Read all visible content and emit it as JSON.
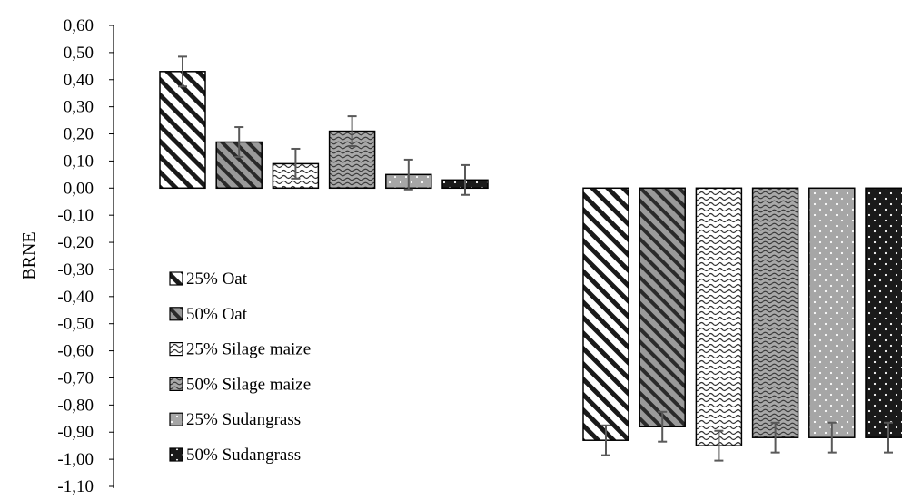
{
  "chart_data": {
    "type": "bar",
    "ylabel": "BRNE",
    "ylim": [
      -1.1,
      0.6
    ],
    "ytick_step": 0.1,
    "ytick_labels": [
      "0,60",
      "0,50",
      "0,40",
      "0,30",
      "0,20",
      "0,10",
      "0,00",
      "-0,10",
      "-0,20",
      "-0,30",
      "-0,40",
      "-0,50",
      "-0,60",
      "-0,70",
      "-0,80",
      "-0,90",
      "-1,00",
      "-1,10"
    ],
    "grid": false,
    "legend_position": "left-middle",
    "groups": [
      {
        "bars": [
          {
            "series": "25% Oat",
            "value": 0.43,
            "err": 0.055
          },
          {
            "series": "50% Oat",
            "value": 0.17,
            "err": 0.055
          },
          {
            "series": "25% Silage maize",
            "value": 0.09,
            "err": 0.055
          },
          {
            "series": "50% Silage maize",
            "value": 0.21,
            "err": 0.055
          },
          {
            "series": "25% Sudangrass",
            "value": 0.05,
            "err": 0.055
          },
          {
            "series": "50% Sudangrass",
            "value": 0.03,
            "err": 0.055
          }
        ]
      },
      {
        "bars": [
          {
            "series": "25% Oat",
            "value": -0.93,
            "err": 0.055
          },
          {
            "series": "50% Oat",
            "value": -0.88,
            "err": 0.055
          },
          {
            "series": "25% Silage maize",
            "value": -0.95,
            "err": 0.055
          },
          {
            "series": "50% Silage maize",
            "value": -0.92,
            "err": 0.055
          },
          {
            "series": "25% Sudangrass",
            "value": -0.92,
            "err": 0.055
          },
          {
            "series": "50% Sudangrass",
            "value": -0.92,
            "err": 0.055
          }
        ]
      }
    ],
    "series": [
      {
        "name": "25% Oat",
        "pattern": "wide-diagonal",
        "color": "#ffffff"
      },
      {
        "name": "50% Oat",
        "pattern": "dark-diagonal",
        "color": "#7a7a7a"
      },
      {
        "name": "25% Silage maize",
        "pattern": "light-wave",
        "color": "#ffffff"
      },
      {
        "name": "50% Silage maize",
        "pattern": "dark-wave",
        "color": "#8c8c8c"
      },
      {
        "name": "25% Sudangrass",
        "pattern": "light-dots",
        "color": "#a6a6a6"
      },
      {
        "name": "50% Sudangrass",
        "pattern": "dark-dots",
        "color": "#1a1a1a"
      }
    ],
    "errorbar_color": "#595959"
  }
}
